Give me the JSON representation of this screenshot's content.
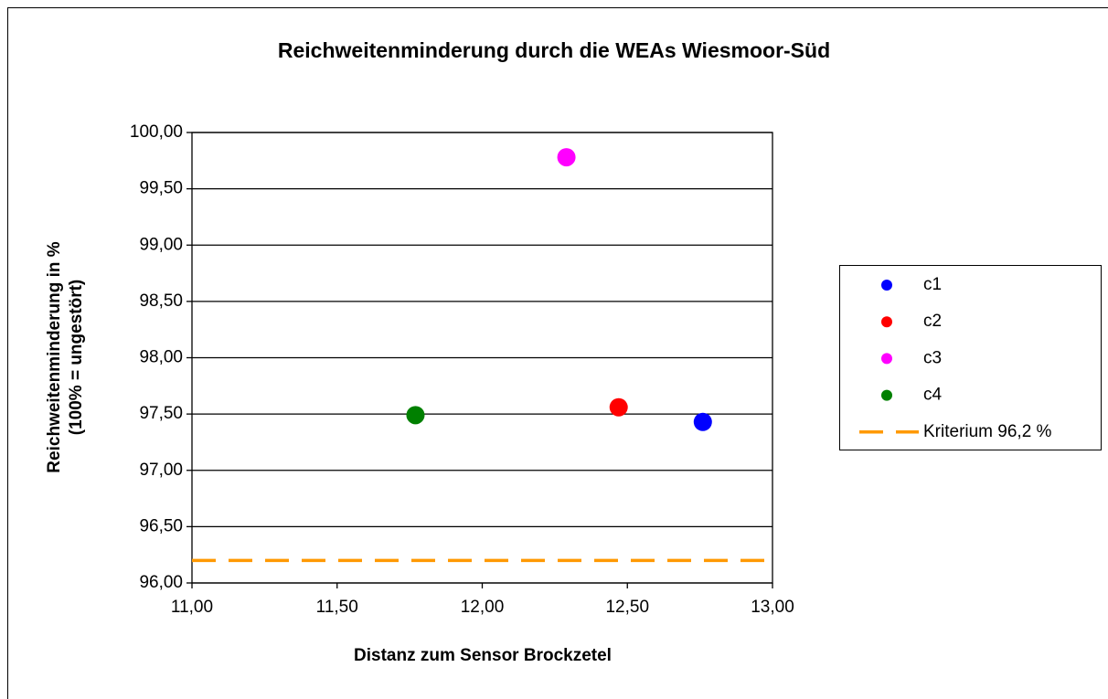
{
  "chart_data": {
    "type": "scatter",
    "title": "Reichweitenminderung durch die WEAs Wiesmoor-Süd",
    "xlabel": "Distanz zum Sensor Brockzetel",
    "ylabel": [
      "Reichweitenminderung  in %",
      "(100% = ungestört)"
    ],
    "xlim": [
      11,
      13
    ],
    "xticks": [
      {
        "value": 11,
        "label": "11,00"
      },
      {
        "value": 11.5,
        "label": "11,50"
      },
      {
        "value": 12,
        "label": "12,00"
      },
      {
        "value": 12.5,
        "label": "12,50"
      },
      {
        "value": 13,
        "label": "13,00"
      }
    ],
    "ylim": [
      96,
      100
    ],
    "yticks": [
      {
        "value": 96,
        "label": "96,00"
      },
      {
        "value": 96.5,
        "label": "96,50"
      },
      {
        "value": 97,
        "label": "97,00"
      },
      {
        "value": 97.5,
        "label": "97,50"
      },
      {
        "value": 98,
        "label": "98,00"
      },
      {
        "value": 98.5,
        "label": "98,50"
      },
      {
        "value": 99,
        "label": "99,00"
      },
      {
        "value": 99.5,
        "label": "99,50"
      },
      {
        "value": 100,
        "label": "100,00"
      }
    ],
    "grid": true,
    "legend": "right",
    "series": [
      {
        "name": "c1",
        "color": "#0000ff",
        "x": [
          12.76
        ],
        "values": [
          97.43
        ]
      },
      {
        "name": "c2",
        "color": "#ff0000",
        "x": [
          12.47
        ],
        "values": [
          97.56
        ]
      },
      {
        "name": "c3",
        "color": "#ff00ff",
        "x": [
          12.29
        ],
        "values": [
          99.78
        ]
      },
      {
        "name": "c4",
        "color": "#008000",
        "x": [
          11.77
        ],
        "values": [
          97.49
        ]
      },
      {
        "name": "Kriterium 96,2 %",
        "color": "#ff9900",
        "style": "dashed",
        "x": [
          11,
          13
        ],
        "values": [
          96.2,
          96.2
        ]
      }
    ]
  }
}
